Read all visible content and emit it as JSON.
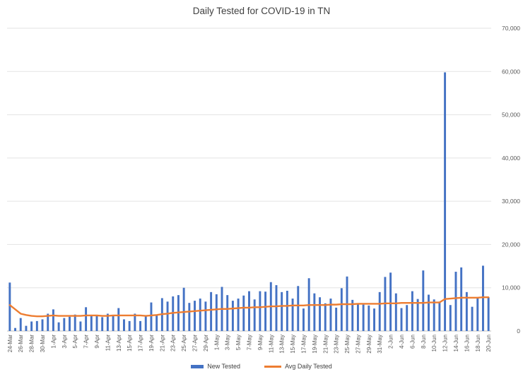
{
  "chart_data": {
    "type": "bar",
    "title": "Daily Tested for COVID-19 in TN",
    "xlabel": "",
    "ylabel": "",
    "y_axis_side": "right",
    "ylim": [
      0,
      70000
    ],
    "y_ticks": [
      "0",
      "10,000",
      "20,000",
      "30,000",
      "40,000",
      "50,000",
      "60,000",
      "70,000"
    ],
    "grid": "horizontal",
    "legend_position": "bottom",
    "colors": {
      "bar": "#4472C4",
      "line": "#ED7D31"
    },
    "categories": [
      "24-Mar",
      "25-Mar",
      "26-Mar",
      "27-Mar",
      "28-Mar",
      "29-Mar",
      "30-Mar",
      "31-Mar",
      "1-Apr",
      "2-Apr",
      "3-Apr",
      "4-Apr",
      "5-Apr",
      "6-Apr",
      "7-Apr",
      "8-Apr",
      "9-Apr",
      "10-Apr",
      "11-Apr",
      "12-Apr",
      "13-Apr",
      "14-Apr",
      "15-Apr",
      "16-Apr",
      "17-Apr",
      "18-Apr",
      "19-Apr",
      "20-Apr",
      "21-Apr",
      "22-Apr",
      "23-Apr",
      "24-Apr",
      "25-Apr",
      "26-Apr",
      "27-Apr",
      "28-Apr",
      "29-Apr",
      "30-Apr",
      "1-May",
      "2-May",
      "3-May",
      "4-May",
      "5-May",
      "6-May",
      "7-May",
      "8-May",
      "9-May",
      "10-May",
      "11-May",
      "12-May",
      "13-May",
      "14-May",
      "15-May",
      "16-May",
      "17-May",
      "18-May",
      "19-May",
      "20-May",
      "21-May",
      "22-May",
      "23-May",
      "24-May",
      "25-May",
      "26-May",
      "27-May",
      "28-May",
      "29-May",
      "30-May",
      "31-May",
      "1-Jun",
      "2-Jun",
      "3-Jun",
      "4-Jun",
      "5-Jun",
      "6-Jun",
      "7-Jun",
      "8-Jun",
      "9-Jun",
      "10-Jun",
      "11-Jun",
      "12-Jun",
      "13-Jun",
      "14-Jun",
      "15-Jun",
      "16-Jun",
      "17-Jun",
      "18-Jun",
      "19-Jun",
      "20-Jun"
    ],
    "x_tick_labels": [
      "24-Mar",
      "26-Mar",
      "28-Mar",
      "30-Mar",
      "1-Apr",
      "3-Apr",
      "5-Apr",
      "7-Apr",
      "9-Apr",
      "11-Apr",
      "13-Apr",
      "15-Apr",
      "17-Apr",
      "19-Apr",
      "21-Apr",
      "23-Apr",
      "25-Apr",
      "27-Apr",
      "29-Apr",
      "1-May",
      "3-May",
      "5-May",
      "7-May",
      "9-May",
      "11-May",
      "13-May",
      "15-May",
      "17-May",
      "19-May",
      "21-May",
      "23-May",
      "25-May",
      "27-May",
      "29-May",
      "31-May",
      "2-Jun",
      "4-Jun",
      "6-Jun",
      "8-Jun",
      "10-Jun",
      "12-Jun",
      "14-Jun",
      "16-Jun",
      "18-Jun",
      "20-Jun"
    ],
    "series": [
      {
        "name": "New Tested",
        "type": "bar",
        "values": [
          11200,
          700,
          3000,
          1200,
          2200,
          2300,
          2700,
          4000,
          5000,
          2000,
          3000,
          3300,
          3800,
          2200,
          5500,
          3500,
          3500,
          3200,
          4000,
          3500,
          5300,
          2700,
          2300,
          4000,
          2300,
          3500,
          6600,
          3800,
          7600,
          6800,
          8000,
          8300,
          10000,
          6500,
          7000,
          7500,
          6800,
          9000,
          8500,
          10200,
          8300,
          7000,
          7500,
          8200,
          9200,
          7300,
          9200,
          9100,
          11300,
          10600,
          9000,
          9300,
          7500,
          10400,
          5200,
          12200,
          8700,
          7800,
          6400,
          7500,
          5400,
          9900,
          12600,
          7200,
          6300,
          6100,
          5900,
          5200,
          9000,
          12500,
          13500,
          8700,
          5300,
          6000,
          9200,
          7400,
          14000,
          8400,
          7300,
          6800,
          59800,
          6000,
          13700,
          14700,
          9000,
          5600,
          7800,
          15100,
          7800
        ]
      },
      {
        "name": "Avg Daily Tested",
        "type": "line",
        "values": [
          6000,
          5000,
          4000,
          3700,
          3500,
          3400,
          3400,
          3500,
          3600,
          3500,
          3500,
          3500,
          3500,
          3500,
          3600,
          3600,
          3600,
          3500,
          3500,
          3600,
          3600,
          3600,
          3600,
          3600,
          3600,
          3500,
          3600,
          3700,
          3900,
          4000,
          4200,
          4300,
          4400,
          4500,
          4600,
          4700,
          4800,
          4900,
          5000,
          5100,
          5100,
          5200,
          5300,
          5400,
          5400,
          5500,
          5500,
          5600,
          5700,
          5700,
          5800,
          5800,
          5900,
          5900,
          5900,
          6000,
          6000,
          6000,
          6000,
          6100,
          6100,
          6200,
          6200,
          6200,
          6300,
          6300,
          6300,
          6300,
          6300,
          6400,
          6400,
          6400,
          6500,
          6500,
          6500,
          6500,
          6500,
          6600,
          6600,
          6600,
          7400,
          7500,
          7600,
          7700,
          7700,
          7700,
          7700,
          7800,
          7800
        ]
      }
    ]
  }
}
